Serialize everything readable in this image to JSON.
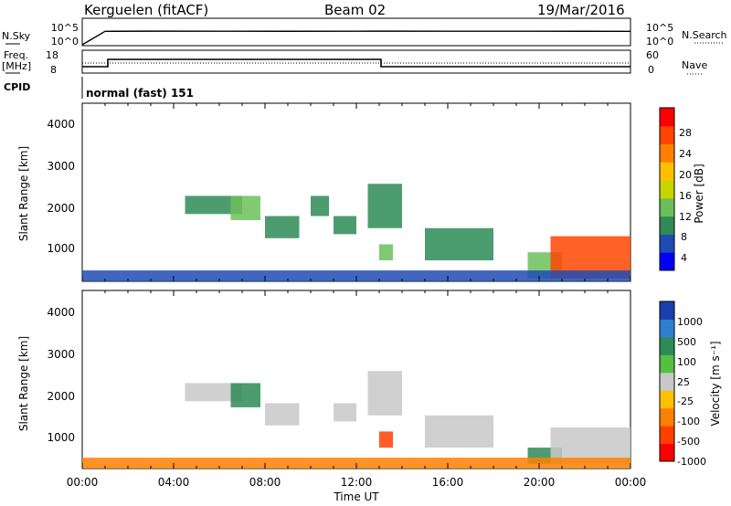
{
  "header": {
    "station": "Kerguelen (fitACF)",
    "beam": "Beam 02",
    "date": "19/Mar/2016"
  },
  "top_panel": {
    "left_label": "N.Sky",
    "left_ticks": [
      "10^5",
      "10^0"
    ],
    "right_label": "N.Search",
    "right_ticks": [
      "10^5",
      "10^0"
    ]
  },
  "freq_panel": {
    "left_label_line1": "Freq.",
    "left_label_line2": "[MHz]",
    "left_ticks": [
      "18",
      "8"
    ],
    "right_ticks": [
      "60",
      "0"
    ],
    "right_label": "Nave",
    "cpid_label": "CPID",
    "mode_text": "normal (fast) 151"
  },
  "x_axis": {
    "ticks": [
      "00:00",
      "04:00",
      "08:00",
      "12:00",
      "16:00",
      "20:00",
      "00:00"
    ],
    "label": "Time UT"
  },
  "power_panel": {
    "ylabel": "Slant Range [km]",
    "yticks": [
      "4000",
      "3000",
      "2000",
      "1000"
    ],
    "colorbar_label": "Power [dB]",
    "colorbar_ticks": [
      "28",
      "24",
      "20",
      "16",
      "12",
      "8",
      "4"
    ],
    "colors": [
      "#0000ff",
      "#1e4bb4",
      "#2e8b57",
      "#6bbf59",
      "#c8d400",
      "#ffc000",
      "#ff8000",
      "#ff4500",
      "#ff0000"
    ]
  },
  "velocity_panel": {
    "ylabel": "Slant Range [km]",
    "yticks": [
      "4000",
      "3000",
      "2000",
      "1000"
    ],
    "colorbar_label": "Velocity [m s⁻¹]",
    "colorbar_ticks": [
      "1000",
      "500",
      "100",
      "25",
      "-25",
      "-100",
      "-500",
      "-1000"
    ],
    "colors": [
      "#1a3fb0",
      "#2f7fd0",
      "#2e8b57",
      "#55c040",
      "#c8c8c8",
      "#ffc000",
      "#ff8000",
      "#ff4000",
      "#ff0000"
    ]
  },
  "chart_data": [
    {
      "type": "line",
      "title": "",
      "series": [
        {
          "name": "N.Sky",
          "x": [
            "00:00",
            "01:00",
            "03:00",
            "06:00",
            "09:00",
            "12:00",
            "13:00",
            "16:00",
            "20:00",
            "24:00"
          ],
          "values": [
            1,
            80000,
            90000,
            85000,
            82000,
            88000,
            90000,
            86000,
            84000,
            80000
          ]
        }
      ]
    },
    {
      "type": "line",
      "title": "",
      "xlabel": "Time UT",
      "series": [
        {
          "name": "Freq. [MHz]",
          "x": [
            "00:00",
            "01:00",
            "01:00",
            "13:00",
            "13:00",
            "24:00"
          ],
          "values": [
            10,
            10,
            14,
            14,
            10,
            10
          ]
        },
        {
          "name": "Nave",
          "x": [
            "00:00",
            "24:00"
          ],
          "values": [
            35,
            35
          ]
        }
      ]
    },
    {
      "type": "heatmap",
      "title": "Power [dB]",
      "xlabel": "Time UT",
      "ylabel": "Slant Range [km]",
      "ylim": [
        180,
        4600
      ],
      "clim": [
        0,
        32
      ],
      "cells": [
        {
          "t": [
            4.5,
            7.0
          ],
          "r": [
            1850,
            2300
          ],
          "v": 8
        },
        {
          "t": [
            6.5,
            7.8
          ],
          "r": [
            1700,
            2300
          ],
          "v": 12
        },
        {
          "t": [
            8.0,
            9.5
          ],
          "r": [
            1250,
            1800
          ],
          "v": 10
        },
        {
          "t": [
            10.0,
            10.8
          ],
          "r": [
            1800,
            2300
          ],
          "v": 8
        },
        {
          "t": [
            11.0,
            12.0
          ],
          "r": [
            1350,
            1800
          ],
          "v": 10
        },
        {
          "t": [
            12.5,
            14.0
          ],
          "r": [
            1500,
            2600
          ],
          "v": 10
        },
        {
          "t": [
            13.0,
            13.6
          ],
          "r": [
            700,
            1100
          ],
          "v": 12
        },
        {
          "t": [
            15.0,
            18.0
          ],
          "r": [
            700,
            1500
          ],
          "v": 10
        },
        {
          "t": [
            19.5,
            21.0
          ],
          "r": [
            250,
            900
          ],
          "v": 14
        },
        {
          "t": [
            20.5,
            24.0
          ],
          "r": [
            250,
            1300
          ],
          "v": 26
        },
        {
          "t": [
            0.0,
            24.0
          ],
          "r": [
            180,
            450
          ],
          "v": 6
        }
      ]
    },
    {
      "type": "heatmap",
      "title": "Velocity [m s⁻¹]",
      "xlabel": "Time UT",
      "ylabel": "Slant Range [km]",
      "ylim": [
        180,
        4600
      ],
      "clim": [
        -1000,
        1000
      ],
      "cells": [
        {
          "t": [
            4.5,
            7.0
          ],
          "r": [
            1850,
            2300
          ],
          "v": 0
        },
        {
          "t": [
            6.5,
            7.8
          ],
          "r": [
            1700,
            2300
          ],
          "v": 100
        },
        {
          "t": [
            8.0,
            9.5
          ],
          "r": [
            1250,
            1800
          ],
          "v": 0
        },
        {
          "t": [
            11.0,
            12.0
          ],
          "r": [
            1350,
            1800
          ],
          "v": 0
        },
        {
          "t": [
            12.5,
            14.0
          ],
          "r": [
            1500,
            2600
          ],
          "v": 0
        },
        {
          "t": [
            13.0,
            13.6
          ],
          "r": [
            700,
            1100
          ],
          "v": -500
        },
        {
          "t": [
            15.0,
            18.0
          ],
          "r": [
            700,
            1500
          ],
          "v": 0
        },
        {
          "t": [
            19.5,
            21.0
          ],
          "r": [
            300,
            700
          ],
          "v": 100
        },
        {
          "t": [
            20.5,
            24.0
          ],
          "r": [
            300,
            1200
          ],
          "v": 0
        },
        {
          "t": [
            0.0,
            24.0
          ],
          "r": [
            180,
            450
          ],
          "v": -100
        }
      ]
    }
  ]
}
